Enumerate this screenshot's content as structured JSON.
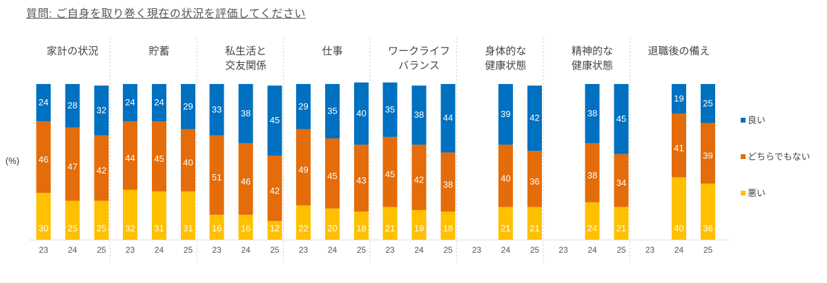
{
  "chart_data": {
    "type": "stacked-bar",
    "title": "質問: ご自身を取り巻く現在の状況を評価してください",
    "ylabel": "(%)",
    "ylim": [
      0,
      100
    ],
    "grid": false,
    "legend_position": "right",
    "series_meta": [
      {
        "key": "good",
        "name": "良い",
        "color": "#0070C0"
      },
      {
        "key": "neutral",
        "name": "どちらでもない",
        "color": "#E46C0A"
      },
      {
        "key": "bad",
        "name": "悪い",
        "color": "#FFC000"
      }
    ],
    "categories": [
      {
        "name": [
          "家計の状況"
        ],
        "years": [
          "23",
          "24",
          "25"
        ],
        "good": [
          24,
          28,
          32
        ],
        "neutral": [
          46,
          47,
          42
        ],
        "bad": [
          30,
          25,
          25
        ]
      },
      {
        "name": [
          "貯蓄"
        ],
        "years": [
          "23",
          "24",
          "25"
        ],
        "good": [
          24,
          24,
          29
        ],
        "neutral": [
          44,
          45,
          40
        ],
        "bad": [
          32,
          31,
          31
        ]
      },
      {
        "name": [
          "私生活と",
          "交友関係"
        ],
        "years": [
          "23",
          "24",
          "25"
        ],
        "good": [
          33,
          38,
          45
        ],
        "neutral": [
          51,
          46,
          42
        ],
        "bad": [
          16,
          16,
          12
        ]
      },
      {
        "name": [
          "仕事"
        ],
        "years": [
          "23",
          "24",
          "25"
        ],
        "good": [
          29,
          35,
          40
        ],
        "neutral": [
          49,
          45,
          43
        ],
        "bad": [
          22,
          20,
          18
        ]
      },
      {
        "name": [
          "ワークライフ",
          "バランス"
        ],
        "years": [
          "23",
          "24",
          "25"
        ],
        "good": [
          35,
          38,
          44
        ],
        "neutral": [
          45,
          42,
          38
        ],
        "bad": [
          21,
          19,
          18
        ]
      },
      {
        "name": [
          "身体的な",
          "健康状態"
        ],
        "years": [
          "23",
          "24",
          "25"
        ],
        "good": [
          null,
          39,
          42
        ],
        "neutral": [
          null,
          40,
          36
        ],
        "bad": [
          null,
          21,
          21
        ]
      },
      {
        "name": [
          "精神的な",
          "健康状態"
        ],
        "years": [
          "23",
          "24",
          "25"
        ],
        "good": [
          null,
          38,
          45
        ],
        "neutral": [
          null,
          38,
          34
        ],
        "bad": [
          null,
          24,
          21
        ]
      },
      {
        "name": [
          "退職後の備え"
        ],
        "years": [
          "23",
          "24",
          "25"
        ],
        "good": [
          null,
          19,
          25
        ],
        "neutral": [
          null,
          41,
          39
        ],
        "bad": [
          null,
          40,
          36
        ]
      }
    ]
  }
}
